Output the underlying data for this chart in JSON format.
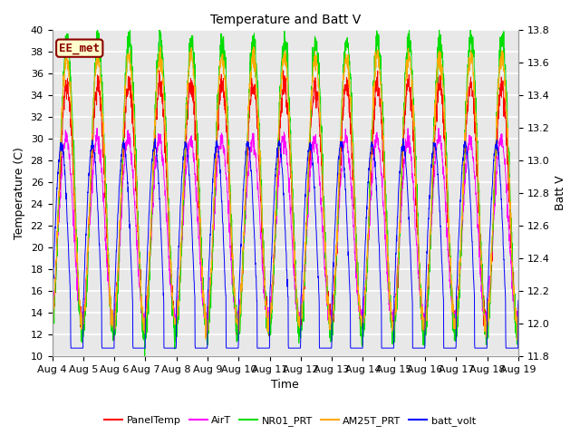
{
  "title": "Temperature and Batt V",
  "xlabel": "Time",
  "ylabel_left": "Temperature (C)",
  "ylabel_right": "Batt V",
  "annotation": "EE_met",
  "ylim_left": [
    10,
    40
  ],
  "ylim_right": [
    11.8,
    13.8
  ],
  "x_tick_labels": [
    "Aug 4",
    "Aug 5",
    "Aug 6",
    "Aug 7",
    "Aug 8",
    "Aug 9",
    "Aug 10",
    "Aug 11",
    "Aug 12",
    "Aug 13",
    "Aug 14",
    "Aug 15",
    "Aug 16",
    "Aug 17",
    "Aug 18",
    "Aug 19"
  ],
  "fig_bg_color": "#ffffff",
  "plot_bg_color": "#e8e8e8",
  "grid_color": "#ffffff",
  "series_colors": {
    "PanelTemp": "#ff0000",
    "AirT": "#ff00ff",
    "NR01_PRT": "#00dd00",
    "AM25T_PRT": "#ffaa00",
    "batt_volt": "#0000ff"
  },
  "n_days": 15,
  "points_per_day": 144,
  "title_fontsize": 10,
  "label_fontsize": 9,
  "tick_fontsize": 8,
  "annot_fontsize": 9,
  "legend_fontsize": 8
}
